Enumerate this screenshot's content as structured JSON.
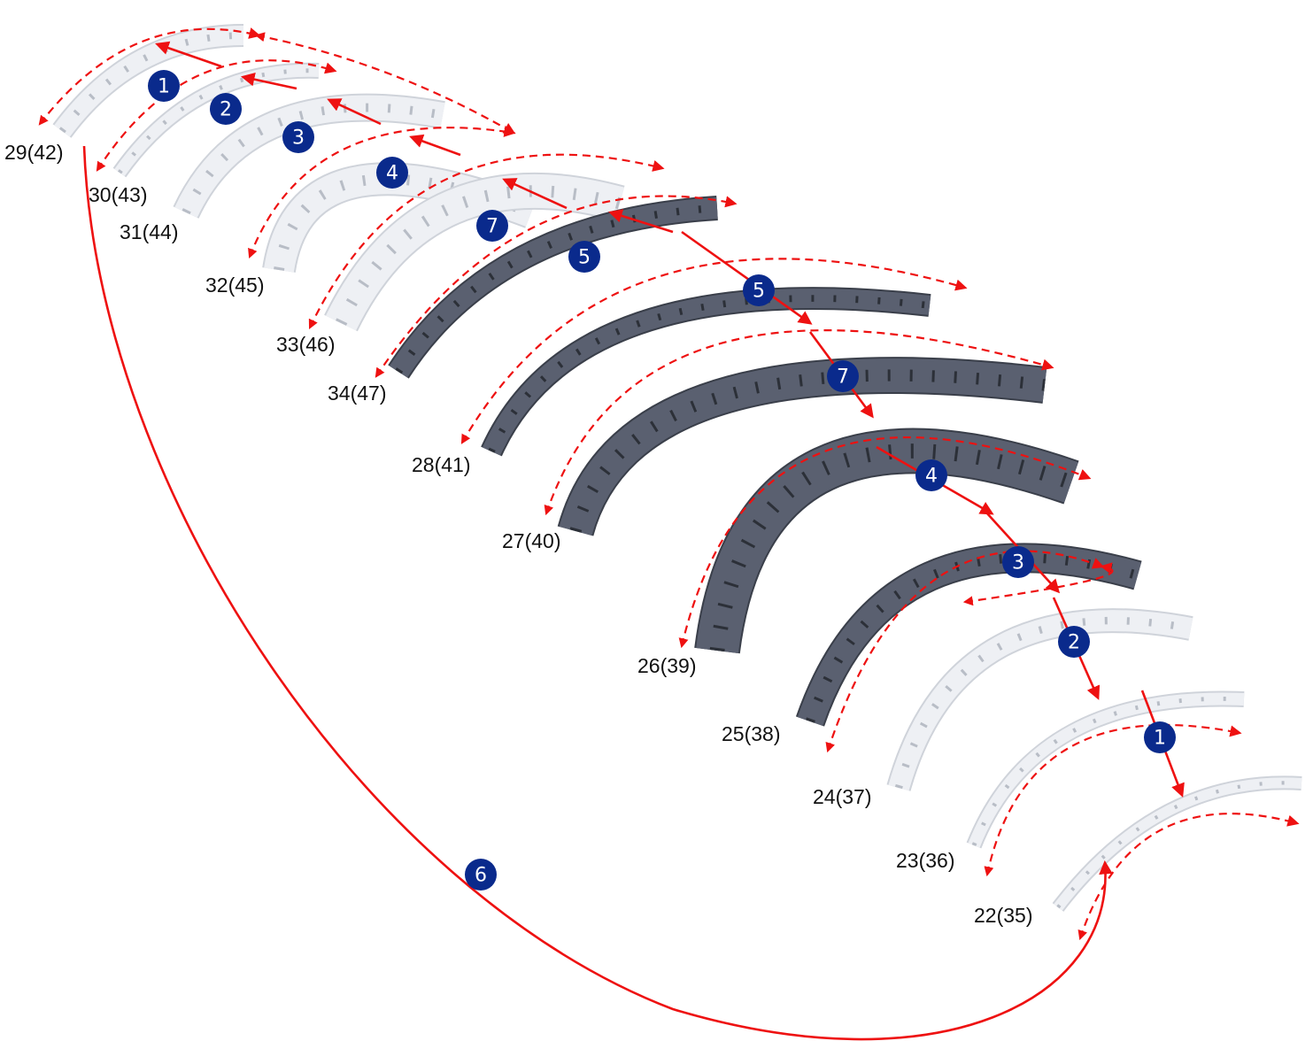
{
  "colors": {
    "arrow": "#ee1111",
    "badge": "#0a2a8c",
    "badge_text": "#ffffff",
    "label": "#111111"
  },
  "segments": [
    {
      "label": "29(42)",
      "tone": "light"
    },
    {
      "label": "30(43)",
      "tone": "light"
    },
    {
      "label": "31(44)",
      "tone": "light"
    },
    {
      "label": "32(45)",
      "tone": "light"
    },
    {
      "label": "33(46)",
      "tone": "light"
    },
    {
      "label": "34(47)",
      "tone": "dark"
    },
    {
      "label": "28(41)",
      "tone": "dark"
    },
    {
      "label": "27(40)",
      "tone": "dark"
    },
    {
      "label": "26(39)",
      "tone": "dark"
    },
    {
      "label": "25(38)",
      "tone": "dark"
    },
    {
      "label": "24(37)",
      "tone": "light"
    },
    {
      "label": "23(36)",
      "tone": "light"
    },
    {
      "label": "22(35)",
      "tone": "light"
    }
  ],
  "steps_upper": [
    "1",
    "2",
    "3",
    "4",
    "7",
    "5"
  ],
  "steps_lower": [
    "5",
    "7",
    "4",
    "3",
    "2",
    "1"
  ],
  "step_return": "6"
}
